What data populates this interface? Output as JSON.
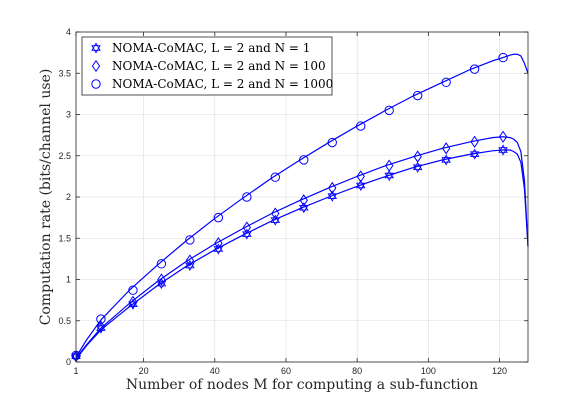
{
  "chart_data": {
    "type": "line",
    "title": "",
    "xlabel": "Number of nodes M for computing a sub-function",
    "ylabel": "Computation rate (bits/channel use)",
    "xlim": [
      1,
      128
    ],
    "ylim": [
      0,
      4
    ],
    "x_ticks": [
      "1",
      "20",
      "40",
      "60",
      "80",
      "100",
      "120"
    ],
    "y_ticks": [
      "0",
      "0.5",
      "1",
      "1.5",
      "2",
      "2.5",
      "3",
      "3.5",
      "4"
    ],
    "grid": true,
    "legend_position": "top-left",
    "line_color": "#0000ff",
    "series": [
      {
        "name": "NOMA-CoMAC, L = 2 and N = 1",
        "marker": "hexagram",
        "x": [
          1,
          2,
          4,
          8,
          16,
          24,
          32,
          40,
          48,
          56,
          64,
          72,
          80,
          88,
          96,
          104,
          112,
          118,
          121,
          123,
          124,
          125,
          126,
          127,
          128
        ],
        "y": [
          0.05,
          0.09,
          0.2,
          0.39,
          0.67,
          0.93,
          1.16,
          1.36,
          1.54,
          1.71,
          1.86,
          2.0,
          2.13,
          2.25,
          2.36,
          2.45,
          2.52,
          2.56,
          2.57,
          2.57,
          2.55,
          2.52,
          2.42,
          2.1,
          1.4
        ],
        "marker_x": [
          1,
          8,
          17,
          25,
          33,
          41,
          49,
          57,
          65,
          73,
          81,
          89,
          97,
          105,
          113,
          121
        ],
        "marker_y": [
          0.07,
          0.41,
          0.7,
          0.95,
          1.17,
          1.37,
          1.55,
          1.72,
          1.87,
          2.01,
          2.14,
          2.26,
          2.36,
          2.45,
          2.52,
          2.57
        ]
      },
      {
        "name": "NOMA-CoMAC, L = 2 and N = 100",
        "marker": "diamond",
        "x": [
          1,
          2,
          4,
          8,
          16,
          24,
          32,
          40,
          48,
          56,
          64,
          72,
          80,
          88,
          96,
          104,
          112,
          118,
          121,
          123,
          124,
          125,
          126,
          127,
          128
        ],
        "y": [
          0.06,
          0.1,
          0.21,
          0.41,
          0.71,
          0.98,
          1.22,
          1.43,
          1.62,
          1.8,
          1.96,
          2.11,
          2.25,
          2.38,
          2.49,
          2.59,
          2.67,
          2.72,
          2.73,
          2.72,
          2.7,
          2.66,
          2.55,
          2.2,
          1.4
        ],
        "marker_x": [
          1,
          8,
          17,
          25,
          33,
          41,
          49,
          57,
          65,
          73,
          81,
          89,
          97,
          105,
          113,
          121
        ],
        "marker_y": [
          0.07,
          0.43,
          0.73,
          1.0,
          1.23,
          1.44,
          1.63,
          1.8,
          1.96,
          2.11,
          2.25,
          2.38,
          2.49,
          2.59,
          2.67,
          2.73
        ]
      },
      {
        "name": "NOMA-CoMAC, L = 2 and N = 1000",
        "marker": "circle",
        "x": [
          1,
          2,
          4,
          8,
          16,
          24,
          32,
          40,
          48,
          56,
          64,
          72,
          80,
          88,
          96,
          104,
          112,
          118,
          121,
          123,
          124,
          125,
          126,
          127,
          128
        ],
        "y": [
          0.07,
          0.13,
          0.27,
          0.51,
          0.87,
          1.18,
          1.47,
          1.74,
          1.99,
          2.23,
          2.45,
          2.66,
          2.86,
          3.05,
          3.23,
          3.39,
          3.55,
          3.65,
          3.69,
          3.72,
          3.73,
          3.73,
          3.71,
          3.62,
          3.5
        ],
        "marker_x": [
          1,
          8,
          17,
          25,
          33,
          41,
          49,
          57,
          65,
          73,
          81,
          89,
          97,
          105,
          113,
          121
        ],
        "marker_y": [
          0.08,
          0.52,
          0.87,
          1.19,
          1.48,
          1.75,
          2.0,
          2.24,
          2.45,
          2.66,
          2.86,
          3.05,
          3.23,
          3.39,
          3.55,
          3.69
        ]
      }
    ]
  }
}
